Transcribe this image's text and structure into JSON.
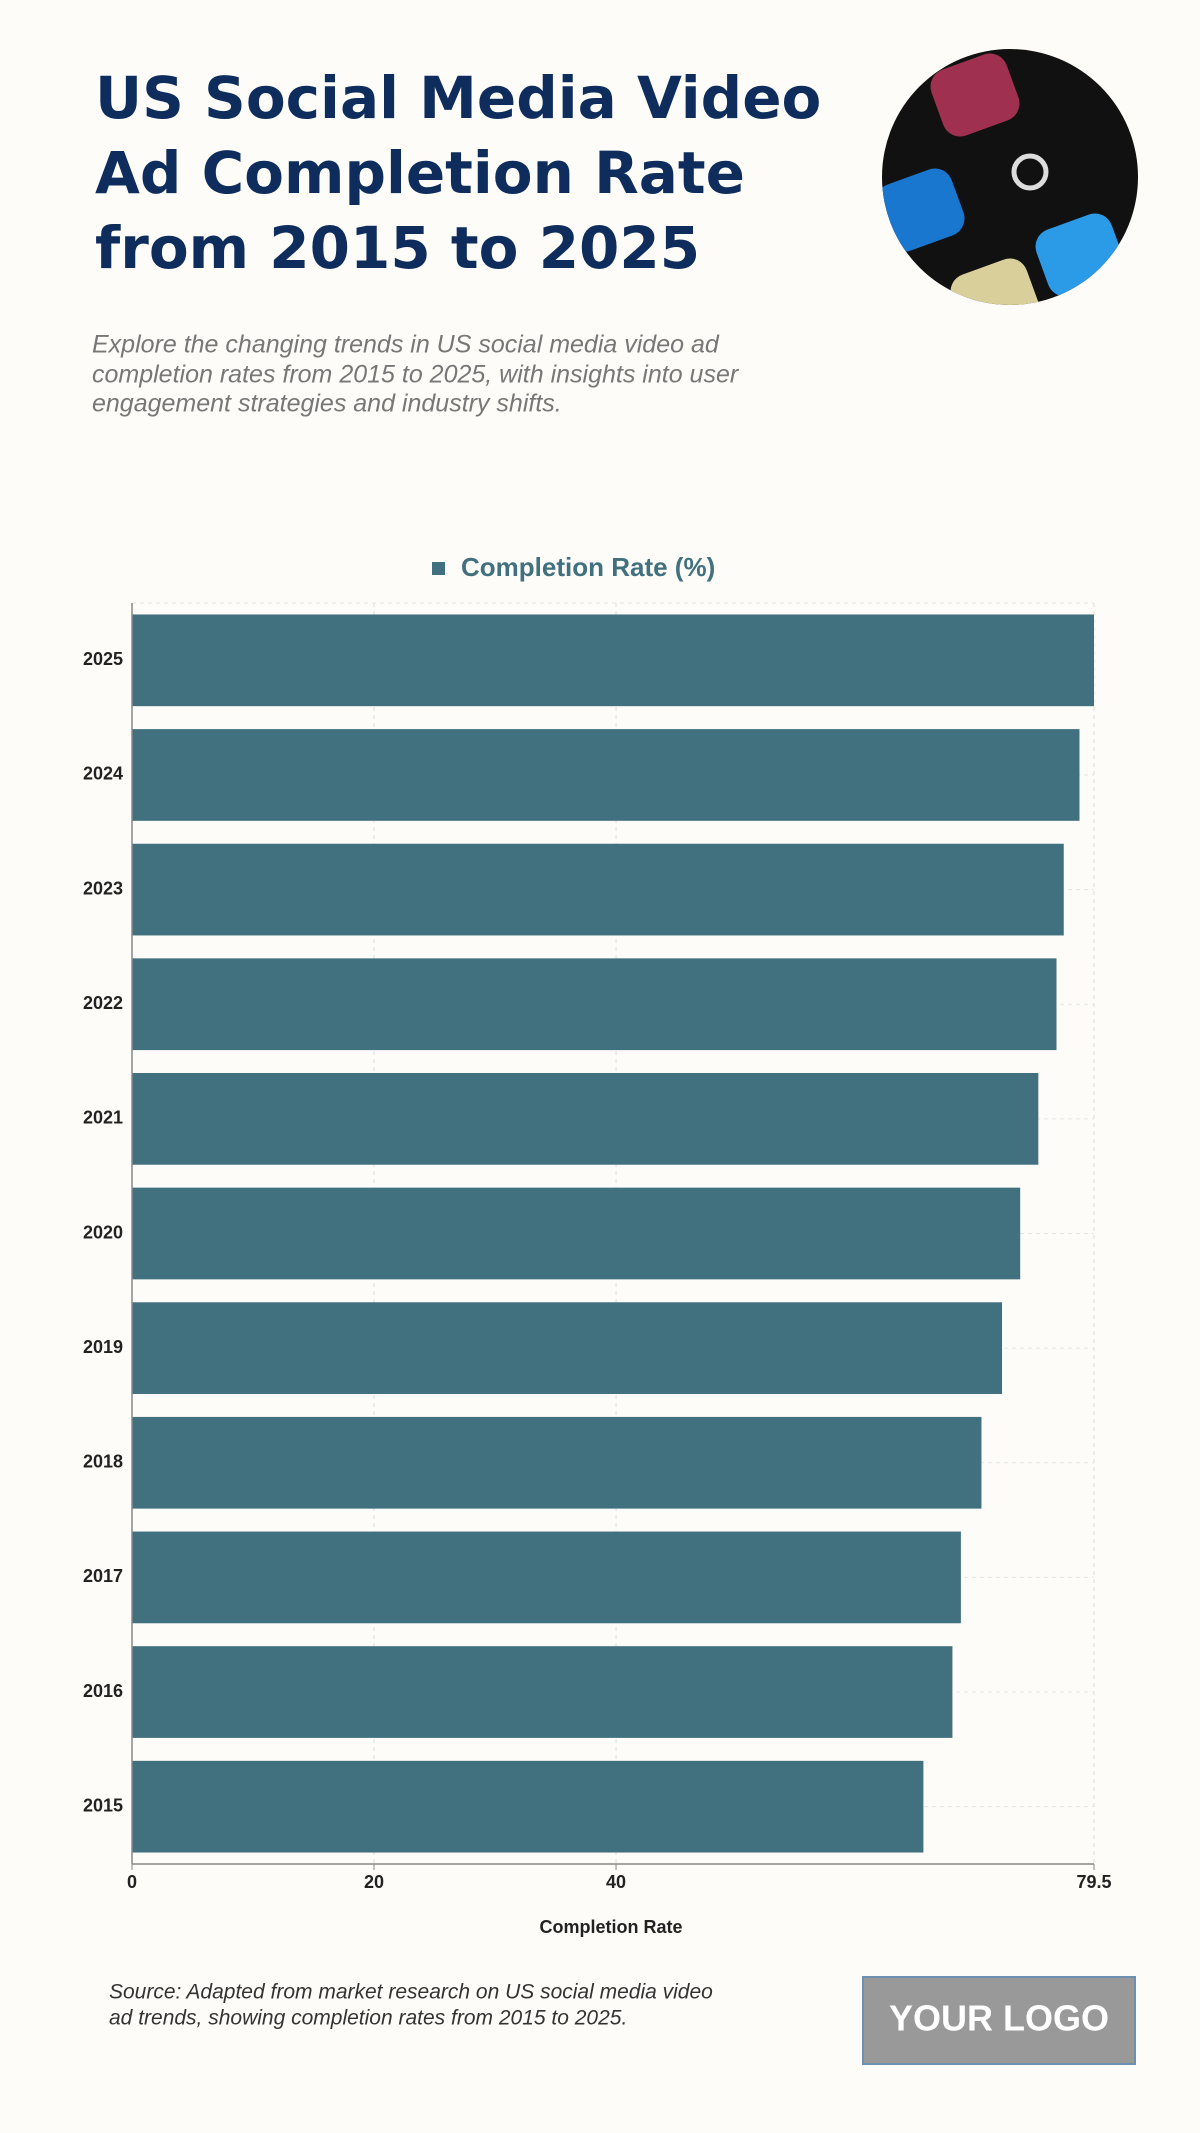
{
  "chart_data": {
    "type": "bar",
    "orientation": "horizontal",
    "title": [
      "US Social Media Video",
      "Ad Completion Rate",
      "from 2015 to 2025"
    ],
    "subtitle": [
      "Explore the changing trends in US social media video ad",
      "completion rates from 2015 to 2025, with insights into user",
      "engagement strategies and industry shifts."
    ],
    "categories": [
      "2015",
      "2016",
      "2017",
      "2018",
      "2019",
      "2020",
      "2021",
      "2022",
      "2023",
      "2024",
      "2025"
    ],
    "series": [
      {
        "name": "Completion Rate (%)",
        "color": "#41707f",
        "values": [
          65.4,
          67.8,
          68.5,
          70.2,
          71.9,
          73.4,
          74.9,
          76.4,
          77.0,
          78.3,
          79.5
        ]
      }
    ],
    "xlabel": "Completion Rate",
    "xlim": [
      0,
      79.5
    ],
    "xticks": [
      0,
      20,
      40,
      79.5
    ],
    "grid": true,
    "legend": "top",
    "source": [
      "Source: Adapted from market research on US social media video",
      "ad trends, showing completion rates from 2015 to 2025."
    ],
    "logo": "YOUR LOGO"
  }
}
